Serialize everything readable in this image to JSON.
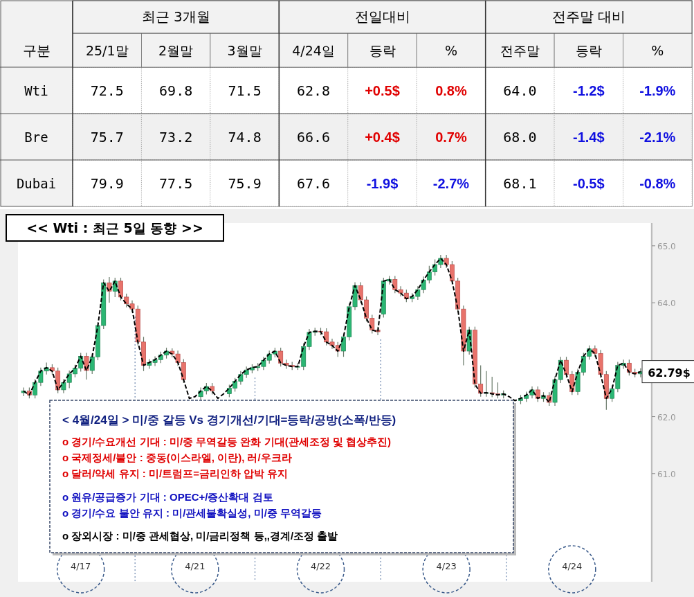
{
  "chart_data": [
    {
      "type": "heatmap",
      "ylabel": "구분",
      "annotations": [
        "최근 3개월",
        "전일대비",
        "전주말 대비"
      ],
      "categories": [
        "25/1말",
        "2월말",
        "3월말",
        "4/24일",
        "등락",
        "%",
        "전주말",
        "등락",
        "%"
      ],
      "y_categories": [
        "Wti",
        "Bre",
        "Dubai"
      ],
      "cells": [
        [
          72.5,
          69.8,
          71.5,
          62.8,
          0.5,
          0.8,
          64.0,
          -1.2,
          -1.9
        ],
        [
          75.7,
          73.2,
          74.8,
          66.6,
          0.4,
          0.7,
          68.0,
          -1.4,
          -2.1
        ],
        [
          79.9,
          77.5,
          75.9,
          67.6,
          -1.9,
          -2.7,
          68.1,
          -0.5,
          -0.8
        ]
      ],
      "cell_labels": [
        [
          "72.5",
          "69.8",
          "71.5",
          "62.8",
          "+0.5$",
          "0.8%",
          "64.0",
          "-1.2$",
          "-1.9%"
        ],
        [
          "75.7",
          "73.2",
          "74.8",
          "66.6",
          "+0.4$",
          "0.7%",
          "68.0",
          "-1.4$",
          "-2.1%"
        ],
        [
          "79.9",
          "77.5",
          "75.9",
          "67.6",
          "-1.9$",
          "-2.7%",
          "68.1",
          "-0.5$",
          "-0.8%"
        ]
      ]
    },
    {
      "type": "candlestick",
      "title": "<< Wti : 최근 5일 동향 >>",
      "categories": [
        null,
        null,
        null,
        null,
        null,
        null,
        null,
        null,
        null,
        null,
        "4/17",
        null,
        null,
        null,
        null,
        null,
        null,
        null,
        null,
        null,
        null,
        null,
        null,
        null,
        null,
        null,
        null,
        null,
        null,
        null,
        "4/21",
        null,
        null,
        null,
        null,
        null,
        null,
        null,
        null,
        null,
        null,
        null,
        null,
        null,
        null,
        null,
        null,
        null,
        null,
        null,
        null,
        null,
        "4/22",
        null,
        null,
        null,
        null,
        null,
        null,
        null,
        null,
        null,
        null,
        null,
        null,
        null,
        null,
        null,
        null,
        null,
        null,
        null,
        null,
        null,
        "4/23",
        null,
        null,
        null,
        null,
        null,
        null,
        null,
        null,
        null,
        null,
        null,
        null,
        null,
        null,
        null,
        null,
        null,
        null,
        null,
        null,
        null,
        "4/24",
        null,
        null,
        null,
        null,
        null,
        null,
        null,
        null,
        null,
        null,
        null,
        null
      ],
      "ohlc": [
        [
          62.42,
          62.51,
          62.36,
          62.45
        ],
        [
          62.45,
          62.51,
          62.32,
          62.38
        ],
        [
          62.38,
          62.66,
          62.32,
          62.6
        ],
        [
          62.6,
          62.86,
          62.54,
          62.8
        ],
        [
          62.8,
          62.95,
          62.74,
          62.86
        ],
        [
          62.86,
          62.92,
          62.74,
          62.8
        ],
        [
          62.8,
          62.86,
          62.41,
          62.47
        ],
        [
          62.47,
          62.66,
          62.41,
          62.6
        ],
        [
          62.6,
          62.81,
          62.5,
          62.75
        ],
        [
          62.75,
          62.91,
          62.69,
          62.85
        ],
        [
          62.85,
          63.12,
          62.79,
          63.06
        ],
        [
          63.06,
          63.12,
          62.65,
          62.81
        ],
        [
          62.81,
          63.11,
          62.75,
          63.05
        ],
        [
          63.05,
          63.66,
          62.99,
          63.6
        ],
        [
          63.6,
          64.41,
          63.54,
          64.35
        ],
        [
          64.35,
          64.45,
          64.0,
          64.2
        ],
        [
          64.2,
          64.44,
          64.1,
          64.38
        ],
        [
          64.38,
          64.44,
          64.04,
          64.1
        ],
        [
          64.1,
          64.16,
          63.92,
          63.98
        ],
        [
          63.98,
          64.04,
          63.83,
          63.89
        ],
        [
          63.89,
          63.95,
          63.25,
          63.31
        ],
        [
          63.31,
          63.4,
          62.8,
          62.9
        ],
        [
          62.9,
          63.01,
          62.84,
          62.95
        ],
        [
          62.95,
          63.06,
          62.89,
          63.0
        ],
        [
          63.0,
          63.14,
          62.94,
          63.08
        ],
        [
          63.08,
          63.21,
          63.02,
          63.15
        ],
        [
          63.15,
          63.2,
          63.04,
          63.1
        ],
        [
          63.1,
          63.16,
          62.89,
          62.95
        ],
        [
          62.95,
          63.01,
          62.59,
          62.65
        ],
        null,
        null,
        [
          62.35,
          62.51,
          62.29,
          62.45
        ],
        [
          62.45,
          62.59,
          62.39,
          62.53
        ],
        [
          62.53,
          62.59,
          62.39,
          62.45
        ],
        null,
        null,
        [
          62.4,
          62.56,
          62.34,
          62.5
        ],
        [
          62.5,
          62.68,
          62.44,
          62.62
        ],
        [
          62.62,
          62.8,
          62.56,
          62.74
        ],
        [
          62.74,
          62.88,
          62.68,
          62.82
        ],
        [
          62.82,
          62.92,
          62.76,
          62.86
        ],
        [
          62.86,
          62.94,
          62.8,
          62.88
        ],
        [
          62.88,
          63.05,
          62.82,
          62.99
        ],
        [
          62.99,
          63.16,
          62.93,
          63.1
        ],
        [
          63.1,
          63.21,
          63.04,
          63.15
        ],
        [
          63.15,
          63.21,
          62.88,
          62.94
        ],
        [
          62.94,
          63.0,
          62.84,
          62.9
        ],
        [
          62.9,
          62.96,
          62.82,
          62.88
        ],
        [
          62.88,
          62.94,
          62.82,
          62.88
        ],
        [
          62.88,
          63.29,
          62.82,
          63.23
        ],
        [
          63.23,
          63.54,
          63.17,
          63.48
        ],
        [
          63.48,
          63.56,
          63.42,
          63.5
        ],
        [
          63.5,
          63.56,
          63.43,
          63.49
        ],
        [
          63.49,
          63.55,
          63.25,
          63.31
        ],
        [
          63.31,
          63.37,
          63.19,
          63.25
        ],
        [
          63.25,
          63.31,
          63.05,
          63.15
        ],
        [
          63.15,
          63.46,
          63.05,
          63.4
        ],
        [
          63.4,
          63.99,
          63.34,
          63.93
        ],
        [
          63.93,
          64.36,
          63.87,
          64.3
        ],
        [
          64.3,
          64.36,
          63.99,
          64.05
        ],
        [
          64.05,
          64.11,
          63.67,
          63.73
        ],
        [
          63.73,
          63.79,
          63.46,
          63.52
        ],
        [
          63.52,
          63.58,
          63.43,
          63.49
        ],
        [
          63.8,
          64.44,
          63.74,
          64.38
        ],
        [
          64.38,
          64.47,
          64.32,
          64.41
        ],
        [
          64.41,
          64.47,
          64.17,
          64.23
        ],
        [
          64.23,
          64.29,
          64.11,
          64.17
        ],
        [
          64.17,
          64.23,
          64.01,
          64.07
        ],
        [
          64.07,
          64.17,
          64.01,
          64.11
        ],
        [
          64.11,
          64.29,
          64.05,
          64.23
        ],
        [
          64.23,
          64.46,
          64.17,
          64.4
        ],
        [
          64.4,
          64.65,
          64.34,
          64.54
        ],
        [
          64.54,
          64.76,
          64.48,
          64.67
        ],
        [
          64.67,
          64.84,
          64.61,
          64.78
        ],
        [
          64.78,
          64.84,
          64.61,
          64.67
        ],
        [
          64.67,
          64.73,
          64.32,
          64.38
        ],
        [
          64.38,
          64.44,
          63.83,
          63.89
        ],
        [
          63.89,
          63.95,
          62.9,
          63.15
        ],
        [
          63.15,
          63.58,
          63.09,
          63.52
        ],
        [
          63.52,
          63.58,
          62.51,
          62.57
        ],
        [
          62.57,
          62.9,
          62.35,
          62.41
        ],
        [
          62.41,
          62.8,
          62.35,
          62.42
        ],
        [
          62.42,
          62.7,
          62.34,
          62.4
        ],
        [
          62.4,
          62.6,
          62.32,
          62.38
        ],
        [
          62.38,
          62.46,
          62.32,
          62.4
        ],
        null,
        null,
        [
          62.28,
          62.38,
          62.22,
          62.32
        ],
        [
          62.32,
          62.44,
          62.26,
          62.38
        ],
        [
          62.38,
          62.53,
          62.32,
          62.47
        ],
        [
          62.47,
          62.53,
          62.26,
          62.32
        ],
        [
          62.32,
          62.43,
          62.26,
          62.37
        ],
        [
          62.37,
          62.43,
          62.19,
          62.25
        ],
        [
          62.25,
          62.71,
          62.19,
          62.65
        ],
        [
          62.65,
          63.05,
          62.59,
          62.99
        ],
        [
          62.99,
          63.05,
          62.68,
          62.74
        ],
        [
          62.74,
          62.8,
          62.38,
          62.44
        ],
        [
          62.44,
          62.84,
          62.38,
          62.78
        ],
        [
          62.78,
          63.12,
          62.72,
          63.06
        ],
        [
          63.06,
          63.25,
          63.0,
          63.19
        ],
        [
          63.19,
          63.25,
          63.05,
          63.11
        ],
        [
          63.11,
          63.17,
          62.68,
          62.74
        ],
        [
          62.74,
          62.8,
          62.12,
          62.32
        ],
        [
          62.32,
          62.55,
          62.26,
          62.49
        ],
        [
          62.49,
          62.96,
          62.43,
          62.9
        ],
        [
          62.9,
          63.0,
          62.84,
          62.94
        ],
        [
          62.94,
          63.0,
          62.72,
          62.78
        ],
        [
          62.78,
          62.84,
          62.69,
          62.75
        ],
        [
          62.75,
          62.85,
          62.69,
          62.79
        ]
      ],
      "series": [
        {
          "type": "line",
          "line_style": "dashed",
          "color": "#000000",
          "values": [
            62.45,
            62.38,
            62.6,
            62.8,
            62.86,
            62.8,
            62.47,
            62.6,
            62.75,
            62.85,
            63.06,
            62.81,
            63.05,
            63.6,
            64.35,
            64.2,
            64.38,
            64.1,
            63.98,
            63.89,
            63.31,
            62.9,
            62.95,
            63.0,
            63.08,
            63.15,
            63.1,
            62.95,
            62.65,
            62.32,
            62.35,
            62.45,
            62.53,
            62.45,
            62.32,
            62.4,
            62.5,
            62.62,
            62.74,
            62.82,
            62.86,
            62.88,
            62.99,
            63.1,
            63.15,
            62.94,
            62.9,
            62.88,
            62.88,
            63.23,
            63.48,
            63.5,
            63.49,
            63.31,
            63.25,
            63.15,
            63.4,
            63.93,
            64.3,
            64.05,
            63.73,
            63.52,
            63.49,
            64.38,
            64.41,
            64.23,
            64.17,
            64.07,
            64.11,
            64.23,
            64.4,
            64.54,
            64.67,
            64.78,
            64.67,
            64.38,
            63.89,
            63.15,
            63.52,
            62.57,
            62.41,
            62.42,
            62.4,
            62.38,
            62.4,
            62.35,
            62.28,
            62.32,
            62.38,
            62.47,
            62.32,
            62.37,
            62.25,
            62.65,
            62.99,
            62.74,
            62.44,
            62.78,
            63.06,
            63.19,
            63.11,
            62.74,
            62.32,
            62.49,
            62.9,
            62.94,
            62.78,
            62.75,
            62.79
          ]
        }
      ],
      "ylim": [
        59.1,
        65.4
      ],
      "yticks": [
        {
          "value": 61,
          "label": "61.0"
        },
        {
          "value": 62,
          "label": "62.0"
        },
        {
          "value": 64,
          "label": "64.0"
        },
        {
          "value": 65,
          "label": "65.0"
        }
      ],
      "annotations": [
        "62.79$",
        "< 4월/24일 > 미/중 갈등 Vs 경기개선/기대=등락/공방(소폭/반등)",
        "o 경기/수요개선 기대 : 미/중 무역갈등 완화 기대(관세조정 및 협상추진)",
        "o 국제정세/불안 : 중동(이스라엘, 이란), 러/우크라",
        "o 달러/약세 유지 : 미/트럼프=금리인하 압박 유지",
        "o 원유/공급증가 기대 : OPEC+/증산확대 검토",
        "o 경기/수요 불안 유지 : 미/관세불확실성, 미/중 무역갈등",
        "o 장외시장 : 미/중 관세협상, 미/금리정책 등,,경계/조정 출발"
      ]
    }
  ]
}
